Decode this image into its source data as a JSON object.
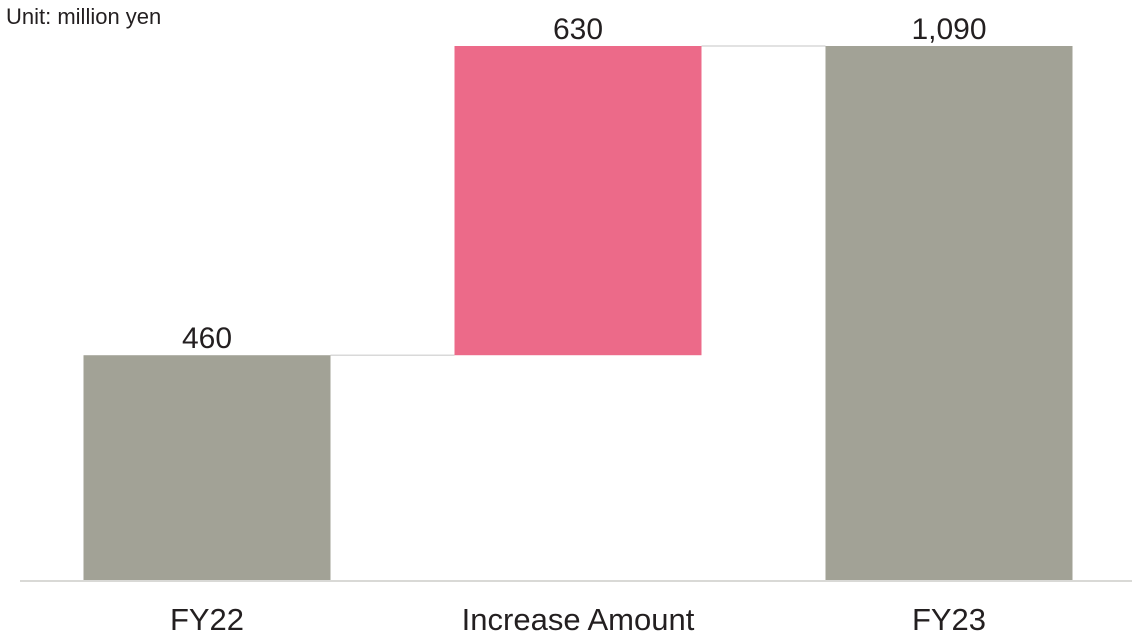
{
  "chart_data": {
    "type": "bar",
    "subtype": "waterfall",
    "unit_label": "Unit: million yen",
    "categories": [
      "FY22",
      "Increase Amount",
      "FY23"
    ],
    "bars": [
      {
        "category": "FY22",
        "kind": "total",
        "base": 0,
        "value": 460,
        "label": "460",
        "color": "#a2a296"
      },
      {
        "category": "Increase Amount",
        "kind": "increase",
        "base": 460,
        "value": 630,
        "label": "630",
        "color": "#ec6a89"
      },
      {
        "category": "FY23",
        "kind": "total",
        "base": 0,
        "value": 1090,
        "label": "1,090",
        "color": "#a2a296"
      }
    ],
    "ylim": [
      0,
      1090
    ],
    "grid": false,
    "connector_color": "#d9d9d9",
    "axis_color": "#d9d9d6"
  }
}
